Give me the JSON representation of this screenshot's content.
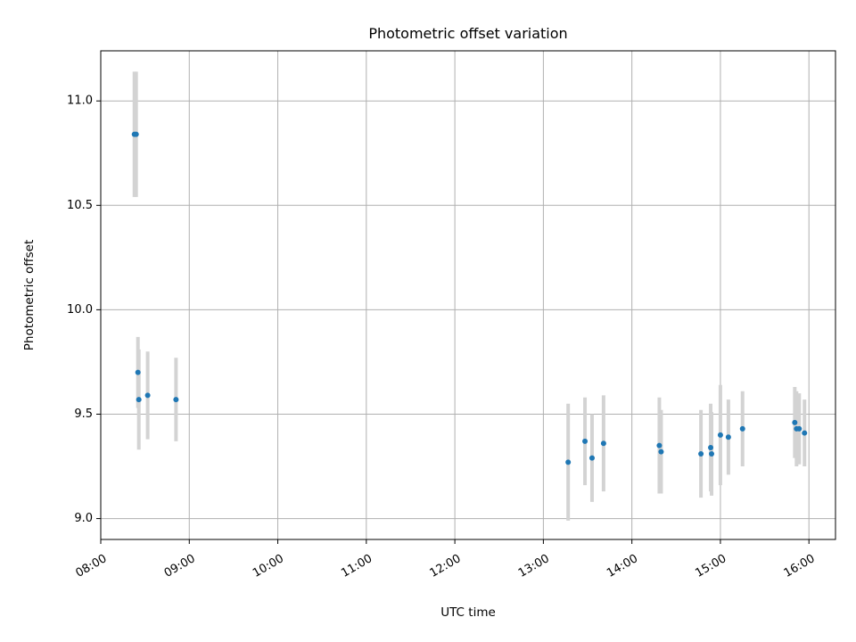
{
  "chart_data": {
    "type": "scatter",
    "title": "Photometric offset variation",
    "xlabel": "UTC time",
    "ylabel": "Photometric offset",
    "xlim_hours": [
      8.0,
      16.3
    ],
    "ylim": [
      8.9,
      11.24
    ],
    "grid": true,
    "x_ticks": [
      {
        "value": 8,
        "label": "08:00"
      },
      {
        "value": 9,
        "label": "09:00"
      },
      {
        "value": 10,
        "label": "10:00"
      },
      {
        "value": 11,
        "label": "11:00"
      },
      {
        "value": 12,
        "label": "12:00"
      },
      {
        "value": 13,
        "label": "13:00"
      },
      {
        "value": 14,
        "label": "14:00"
      },
      {
        "value": 15,
        "label": "15:00"
      },
      {
        "value": 16,
        "label": "16:00"
      }
    ],
    "y_ticks": [
      {
        "value": 9.0,
        "label": "9.0"
      },
      {
        "value": 9.5,
        "label": "9.5"
      },
      {
        "value": 10.0,
        "label": "10.0"
      },
      {
        "value": 10.5,
        "label": "10.5"
      },
      {
        "value": 11.0,
        "label": "11.0"
      }
    ],
    "point_color": "#1f77b4",
    "errorbar_color": "#d3d3d3",
    "points": [
      {
        "x": 8.38,
        "y": 10.84,
        "err": 0.3
      },
      {
        "x": 8.4,
        "y": 10.84,
        "err": 0.3
      },
      {
        "x": 8.42,
        "y": 9.7,
        "err": 0.17
      },
      {
        "x": 8.43,
        "y": 9.57,
        "err": 0.24
      },
      {
        "x": 8.53,
        "y": 9.59,
        "err": 0.21
      },
      {
        "x": 8.85,
        "y": 9.57,
        "err": 0.2
      },
      {
        "x": 13.28,
        "y": 9.27,
        "err": 0.28
      },
      {
        "x": 13.47,
        "y": 9.37,
        "err": 0.21
      },
      {
        "x": 13.55,
        "y": 9.29,
        "err": 0.21
      },
      {
        "x": 13.68,
        "y": 9.36,
        "err": 0.23
      },
      {
        "x": 14.31,
        "y": 9.35,
        "err": 0.23
      },
      {
        "x": 14.33,
        "y": 9.32,
        "err": 0.2
      },
      {
        "x": 14.78,
        "y": 9.31,
        "err": 0.21
      },
      {
        "x": 14.89,
        "y": 9.34,
        "err": 0.21
      },
      {
        "x": 14.9,
        "y": 9.31,
        "err": 0.2
      },
      {
        "x": 15.0,
        "y": 9.4,
        "err": 0.24
      },
      {
        "x": 15.09,
        "y": 9.39,
        "err": 0.18
      },
      {
        "x": 15.25,
        "y": 9.43,
        "err": 0.18
      },
      {
        "x": 15.84,
        "y": 9.46,
        "err": 0.17
      },
      {
        "x": 15.86,
        "y": 9.43,
        "err": 0.18
      },
      {
        "x": 15.89,
        "y": 9.43,
        "err": 0.17
      },
      {
        "x": 15.95,
        "y": 9.41,
        "err": 0.16
      }
    ]
  }
}
